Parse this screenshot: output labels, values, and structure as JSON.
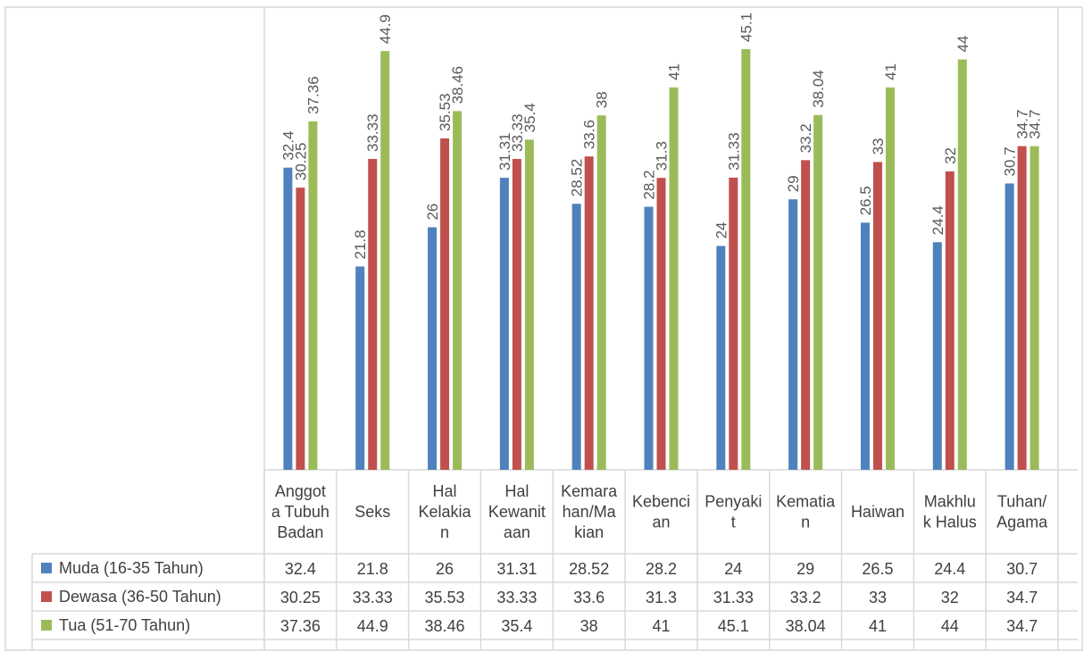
{
  "chart_data": {
    "type": "bar",
    "title": "",
    "xlabel": "",
    "ylabel": "",
    "grid": false,
    "legend_placement": "data-table",
    "categories": [
      "Anggota Tubuh Badan",
      "Seks",
      "Hal Kelakian",
      "Hal Kewanitaan",
      "Kemarahan/Makian",
      "Kebencian",
      "Penyakit",
      "Kematian",
      "Haiwan",
      "Makhluk Halus",
      "Tuhan/Agama"
    ],
    "category_lines": [
      [
        "Anggot",
        "a Tubuh",
        "Badan"
      ],
      [
        "Seks"
      ],
      [
        "Hal",
        "Kelakia",
        "n"
      ],
      [
        "Hal",
        "Kewanit",
        "aan"
      ],
      [
        "Kemara",
        "han/Ma",
        "kian"
      ],
      [
        "Kebenci",
        "an"
      ],
      [
        "Penyaki",
        "t"
      ],
      [
        "Kematia",
        "n"
      ],
      [
        "Haiwan"
      ],
      [
        "Makhlu",
        "k Halus"
      ],
      [
        "Tuhan/",
        "Agama"
      ]
    ],
    "series": [
      {
        "name": "Muda (16-35 Tahun)",
        "color": "#4f81bd",
        "values": [
          32.4,
          21.8,
          26,
          31.31,
          28.52,
          28.2,
          24,
          29,
          26.5,
          24.4,
          30.7
        ],
        "labels": [
          "32.4",
          "21.8",
          "26",
          "31.31",
          "28.52",
          "28.2",
          "24",
          "29",
          "26.5",
          "24.4",
          "30.7"
        ]
      },
      {
        "name": "Dewasa (36-50 Tahun)",
        "color": "#c0504d",
        "values": [
          30.25,
          33.33,
          35.53,
          33.33,
          33.6,
          31.3,
          31.33,
          33.2,
          33,
          32,
          34.7
        ],
        "labels": [
          "30.25",
          "33.33",
          "35.53",
          "33.33",
          "33.6",
          "31.3",
          "31.33",
          "33.2",
          "33",
          "32",
          "34.7"
        ]
      },
      {
        "name": "Tua (51-70 Tahun)",
        "color": "#9bbb59",
        "values": [
          37.36,
          44.9,
          38.46,
          35.4,
          38,
          41,
          45.1,
          38.04,
          41,
          44,
          34.7
        ],
        "labels": [
          "37.36",
          "44.9",
          "38.46",
          "35.4",
          "38",
          "41",
          "45.1",
          "38.04",
          "41",
          "44",
          "34.7"
        ]
      }
    ],
    "ylim": [
      0,
      47.5
    ]
  }
}
